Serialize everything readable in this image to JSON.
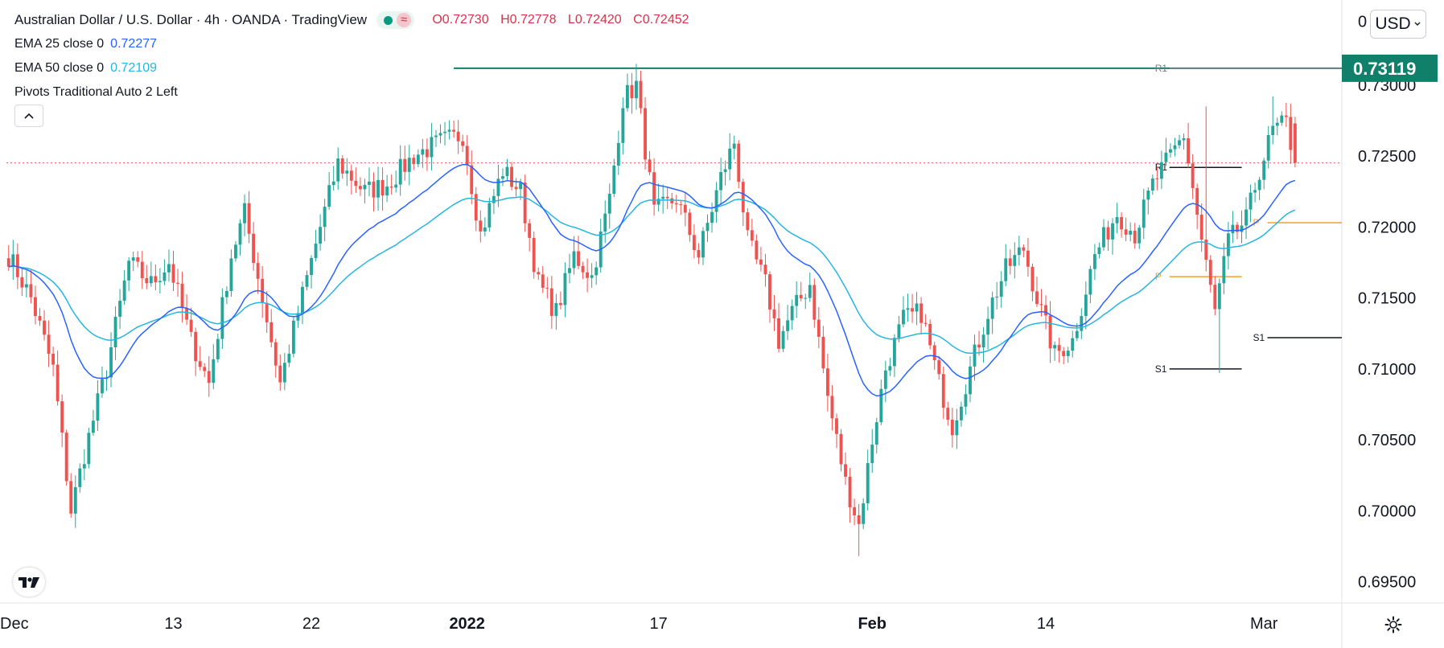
{
  "header": {
    "title": "Australian Dollar / U.S. Dollar · 4h · OANDA · TradingView",
    "ohlc": [
      {
        "key": "O",
        "value": "0.72730"
      },
      {
        "key": "H",
        "value": "0.72778"
      },
      {
        "key": "L",
        "value": "0.72420"
      },
      {
        "key": "C",
        "value": "0.72452"
      }
    ],
    "status_icon": "replay-wave-icon"
  },
  "indicators": [
    {
      "name": "EMA 25 close 0",
      "value": "0.72277",
      "color": "#2962ff"
    },
    {
      "name": "EMA 50 close 0",
      "value": "0.72109",
      "color": "#26b6e0"
    },
    {
      "name": "Pivots Traditional Auto 2 Left",
      "value": ""
    }
  ],
  "controls": {
    "collapse_icon": "chevron-up-icon",
    "currency": "USD",
    "currency_icon": "chevron-down-icon",
    "settings_icon": "gear-icon",
    "logo_icon": "tradingview-logo-icon"
  },
  "colors": {
    "up": "#26a69a",
    "down": "#ef5350",
    "ema25": "#2962ff",
    "ema50": "#26b6e0",
    "resistance": "#10806a",
    "pivot": "#f0a030",
    "grid_text": "#131722"
  },
  "chart_data": {
    "type": "candlestick",
    "title": "Australian Dollar / U.S. Dollar · 4h · OANDA",
    "ylim": [
      0.6935,
      0.736
    ],
    "y_ticks": [
      "0.69500",
      "0.70000",
      "0.70500",
      "0.71000",
      "0.71500",
      "0.72000",
      "0.72500",
      "0.73000"
    ],
    "top_partial_tick": "0",
    "x_ticks": [
      {
        "label": "Dec",
        "bar": 0,
        "bold": false
      },
      {
        "label": "13",
        "bar": 37,
        "bold": false
      },
      {
        "label": "22",
        "bar": 68,
        "bold": false
      },
      {
        "label": "2022",
        "bar": 103,
        "bold": true
      },
      {
        "label": "17",
        "bar": 146,
        "bold": false
      },
      {
        "label": "Feb",
        "bar": 194,
        "bold": true
      },
      {
        "label": "14",
        "bar": 233,
        "bold": false
      },
      {
        "label": "Mar",
        "bar": 282,
        "bold": false
      }
    ],
    "n_bars": 300,
    "price_waypoints": [
      [
        0,
        0.718
      ],
      [
        5,
        0.715
      ],
      [
        10,
        0.71
      ],
      [
        14,
        0.7
      ],
      [
        17,
        0.704
      ],
      [
        22,
        0.71
      ],
      [
        27,
        0.7175
      ],
      [
        32,
        0.716
      ],
      [
        36,
        0.7175
      ],
      [
        41,
        0.712
      ],
      [
        45,
        0.709
      ],
      [
        50,
        0.718
      ],
      [
        53,
        0.721
      ],
      [
        57,
        0.715
      ],
      [
        61,
        0.709
      ],
      [
        65,
        0.714
      ],
      [
        70,
        0.72
      ],
      [
        74,
        0.7245
      ],
      [
        80,
        0.7225
      ],
      [
        85,
        0.723
      ],
      [
        91,
        0.725
      ],
      [
        97,
        0.726
      ],
      [
        102,
        0.7265
      ],
      [
        106,
        0.7195
      ],
      [
        111,
        0.724
      ],
      [
        115,
        0.7225
      ],
      [
        119,
        0.716
      ],
      [
        123,
        0.714
      ],
      [
        127,
        0.718
      ],
      [
        131,
        0.7165
      ],
      [
        135,
        0.722
      ],
      [
        138,
        0.729
      ],
      [
        141,
        0.73
      ],
      [
        145,
        0.721
      ],
      [
        150,
        0.722
      ],
      [
        155,
        0.718
      ],
      [
        160,
        0.7235
      ],
      [
        163,
        0.726
      ],
      [
        166,
        0.719
      ],
      [
        170,
        0.716
      ],
      [
        173,
        0.712
      ],
      [
        176,
        0.714
      ],
      [
        180,
        0.716
      ],
      [
        184,
        0.708
      ],
      [
        188,
        0.702
      ],
      [
        191,
        0.699
      ],
      [
        194,
        0.705
      ],
      [
        197,
        0.71
      ],
      [
        201,
        0.7135
      ],
      [
        205,
        0.714
      ],
      [
        209,
        0.709
      ],
      [
        212,
        0.706
      ],
      [
        216,
        0.71
      ],
      [
        220,
        0.714
      ],
      [
        224,
        0.717
      ],
      [
        228,
        0.7185
      ],
      [
        231,
        0.715
      ],
      [
        235,
        0.711
      ],
      [
        239,
        0.712
      ],
      [
        244,
        0.718
      ],
      [
        249,
        0.721
      ],
      [
        253,
        0.7195
      ],
      [
        257,
        0.723
      ],
      [
        261,
        0.725
      ],
      [
        264,
        0.7265
      ],
      [
        268,
        0.719
      ],
      [
        271,
        0.714
      ],
      [
        274,
        0.719
      ],
      [
        278,
        0.7205
      ],
      [
        281,
        0.724
      ],
      [
        284,
        0.7268
      ],
      [
        287,
        0.7273
      ],
      [
        289,
        0.7245
      ]
    ],
    "highs_marked": [
      {
        "bar": 141,
        "value": 0.7315
      },
      {
        "bar": 269,
        "value": 0.7285
      },
      {
        "bar": 284,
        "value": 0.7292
      }
    ],
    "lows_marked": [
      {
        "bar": 14,
        "value": 0.6995
      },
      {
        "bar": 191,
        "value": 0.6968
      },
      {
        "bar": 272,
        "value": 0.7097
      }
    ],
    "last_close": 0.72452,
    "resistance_line": {
      "value": 0.73119,
      "label": "0.73119",
      "from_bar": 100,
      "to_bar": 300
    },
    "pivots": [
      {
        "label": "R1",
        "value": 0.73119,
        "from_bar": 255,
        "to_bar": 300,
        "color": "#787b86"
      },
      {
        "label": "R1",
        "value": 0.7242,
        "from_bar": 255,
        "to_bar": 277,
        "color": "#131722"
      },
      {
        "label": "P",
        "value": 0.7165,
        "from_bar": 255,
        "to_bar": 277,
        "color": "#f0a030"
      },
      {
        "label": "S1",
        "value": 0.71,
        "from_bar": 255,
        "to_bar": 277,
        "color": "#131722"
      },
      {
        "label": "P",
        "value": 0.7203,
        "from_bar": 277,
        "to_bar": 300,
        "color": "#f0a030"
      },
      {
        "label": "S1",
        "value": 0.7122,
        "from_bar": 277,
        "to_bar": 300,
        "color": "#131722"
      }
    ],
    "series": [
      {
        "name": "EMA 25 close 0",
        "last_value": 0.72277
      },
      {
        "name": "EMA 50 close 0",
        "last_value": 0.72109
      }
    ]
  }
}
